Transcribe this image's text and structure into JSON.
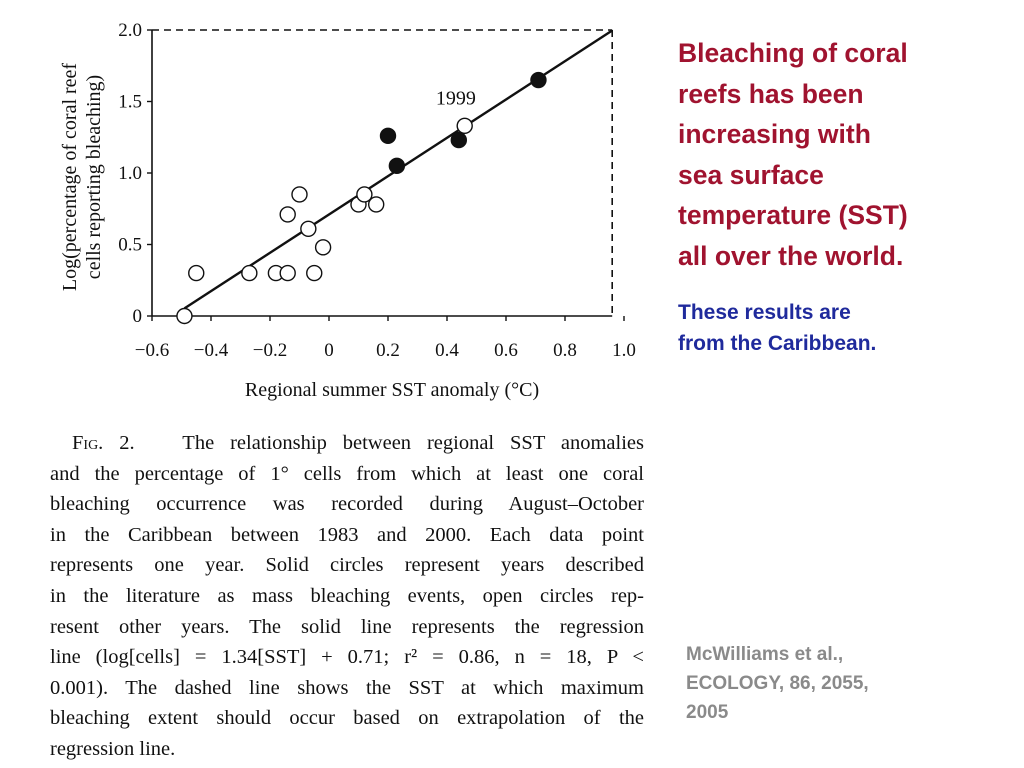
{
  "chart_data": {
    "type": "scatter",
    "xlabel": "Regional summer SST anomaly (°C)",
    "ylabel_lines": [
      "Log(percentage of coral reef",
      "cells reporting bleaching)"
    ],
    "xlim": [
      -0.6,
      1.0
    ],
    "ylim": [
      0,
      2.0
    ],
    "x_ticks": [
      -0.6,
      -0.4,
      -0.2,
      0,
      0.2,
      0.4,
      0.6,
      0.8,
      1.0
    ],
    "x_tick_labels": [
      "−0.6",
      "−0.4",
      "−0.2",
      "0",
      "0.2",
      "0.4",
      "0.6",
      "0.8",
      "1.0"
    ],
    "y_ticks": [
      0,
      0.5,
      1.0,
      1.5,
      2.0
    ],
    "y_tick_labels": [
      "0",
      "0.5",
      "1.0",
      "1.5",
      "2.0"
    ],
    "annotation": {
      "text": "1999",
      "x": 0.43,
      "y": 1.52
    },
    "open_points": [
      {
        "x": -0.49,
        "y": 0.0
      },
      {
        "x": -0.45,
        "y": 0.3
      },
      {
        "x": -0.27,
        "y": 0.3
      },
      {
        "x": -0.18,
        "y": 0.3
      },
      {
        "x": -0.14,
        "y": 0.3
      },
      {
        "x": -0.14,
        "y": 0.71
      },
      {
        "x": -0.1,
        "y": 0.85
      },
      {
        "x": -0.07,
        "y": 0.61
      },
      {
        "x": -0.05,
        "y": 0.3
      },
      {
        "x": -0.02,
        "y": 0.48
      },
      {
        "x": 0.1,
        "y": 0.78
      },
      {
        "x": 0.12,
        "y": 0.85
      },
      {
        "x": 0.16,
        "y": 0.78
      },
      {
        "x": 0.46,
        "y": 1.33
      }
    ],
    "solid_points": [
      {
        "x": 0.2,
        "y": 1.26
      },
      {
        "x": 0.23,
        "y": 1.05
      },
      {
        "x": 0.44,
        "y": 1.23
      },
      {
        "x": 0.71,
        "y": 1.65
      }
    ],
    "regression_line": {
      "slope": 1.34,
      "intercept": 0.71,
      "x_start": -0.49,
      "x_end": 0.96
    },
    "dashed_box": {
      "x": 0.96,
      "y": 2.0
    },
    "grid": false
  },
  "caption": {
    "fig_prefix": "Fig. 2.",
    "lines": [
      "The relationship between regional SST anomalies",
      "and the percentage of 1° cells from which at least one coral",
      "bleaching occurrence was recorded during August–October",
      "in the Caribbean between 1983 and 2000. Each data point",
      "represents one year. Solid circles represent years described",
      "in the literature as mass bleaching events, open circles rep-",
      "resent other years. The solid line represents the regression",
      "line (log[cells] = 1.34[SST] + 0.71; r² = 0.86, n = 18, P <",
      "0.001). The dashed line shows the SST at which maximum",
      "bleaching extent should occur based on extrapolation of the",
      "regression line."
    ]
  },
  "headline_lines": [
    "Bleaching of coral",
    "reefs has been",
    "increasing with",
    "sea surface",
    "temperature (SST)",
    "all over the world."
  ],
  "subline_lines": [
    "These results are",
    "from the Caribbean."
  ],
  "citation_lines": [
    "McWilliams et al.,",
    "ECOLOGY, 86, 2055,",
    "2005"
  ],
  "colors": {
    "headline": "#a0132f",
    "subline": "#1f2a9c",
    "citation": "#8a8a8a"
  }
}
